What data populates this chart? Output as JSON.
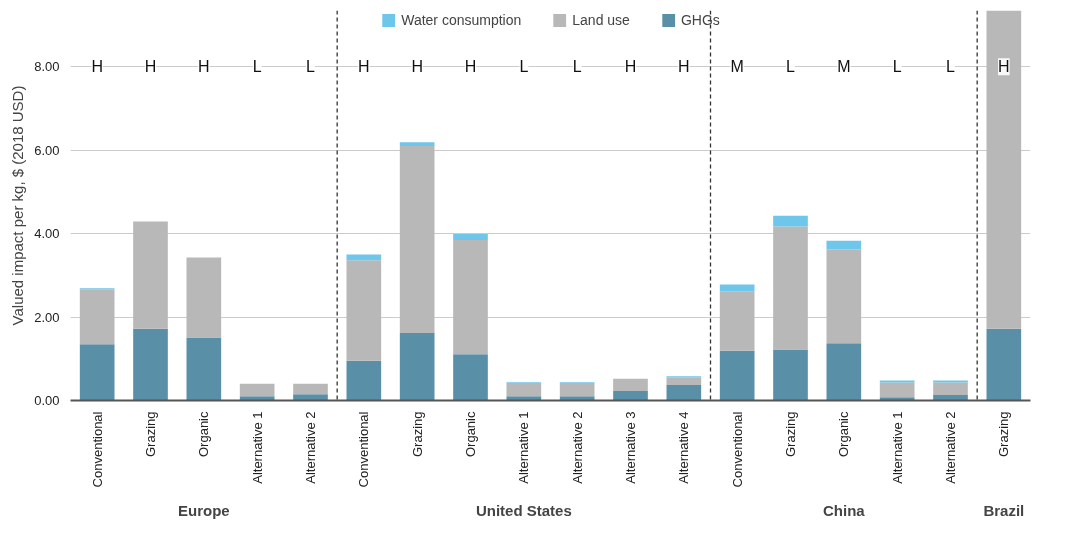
{
  "chart_data": {
    "type": "bar",
    "stacked": true,
    "ylabel": "Valued impact per kg, $ (2018 USD)",
    "categories": [
      "Conventional",
      "Grazing",
      "Organic",
      "Alternative 1",
      "Alternative 2",
      "Conventional",
      "Grazing",
      "Organic",
      "Alternative 1",
      "Alternative 2",
      "Alternative 3",
      "Alternative 4",
      "Conventional",
      "Grazing",
      "Organic",
      "Alternative 1",
      "Alternative 2",
      "Grazing"
    ],
    "ylim": [
      0,
      9.35
    ],
    "yticks": [
      {
        "value": 0,
        "label": "0.00"
      },
      {
        "value": 2,
        "label": "2.00"
      },
      {
        "value": 4,
        "label": "4.00"
      },
      {
        "value": 6,
        "label": "6.00"
      },
      {
        "value": 8,
        "label": "8.00"
      }
    ],
    "series": [
      {
        "name": "GHGs",
        "color": "#5a8fa8",
        "values": [
          1.35,
          1.72,
          1.51,
          0.1,
          0.15,
          0.95,
          1.62,
          1.11,
          0.1,
          0.1,
          0.23,
          0.37,
          1.19,
          1.22,
          1.37,
          0.08,
          0.13,
          1.72
        ]
      },
      {
        "name": "Land use",
        "color": "#b8b8b8",
        "values": [
          1.31,
          2.57,
          1.92,
          0.3,
          0.25,
          2.41,
          4.48,
          2.74,
          0.32,
          0.32,
          0.29,
          0.18,
          1.43,
          2.95,
          2.25,
          0.35,
          0.3,
          7.63
        ]
      },
      {
        "name": "Water consumption",
        "color": "#6ec6ea",
        "values": [
          0.03,
          0,
          0,
          0,
          0,
          0.14,
          0.09,
          0.14,
          0.02,
          0.02,
          0,
          0.03,
          0.16,
          0.26,
          0.21,
          0.05,
          0.05,
          0
        ]
      }
    ],
    "annotations": [
      "H",
      "H",
      "H",
      "L",
      "L",
      "H",
      "H",
      "H",
      "L",
      "L",
      "H",
      "H",
      "M",
      "L",
      "M",
      "L",
      "L",
      "H",
      "Europe",
      "United States",
      "China",
      "Brazil"
    ],
    "grid": "y",
    "legend": "top"
  }
}
